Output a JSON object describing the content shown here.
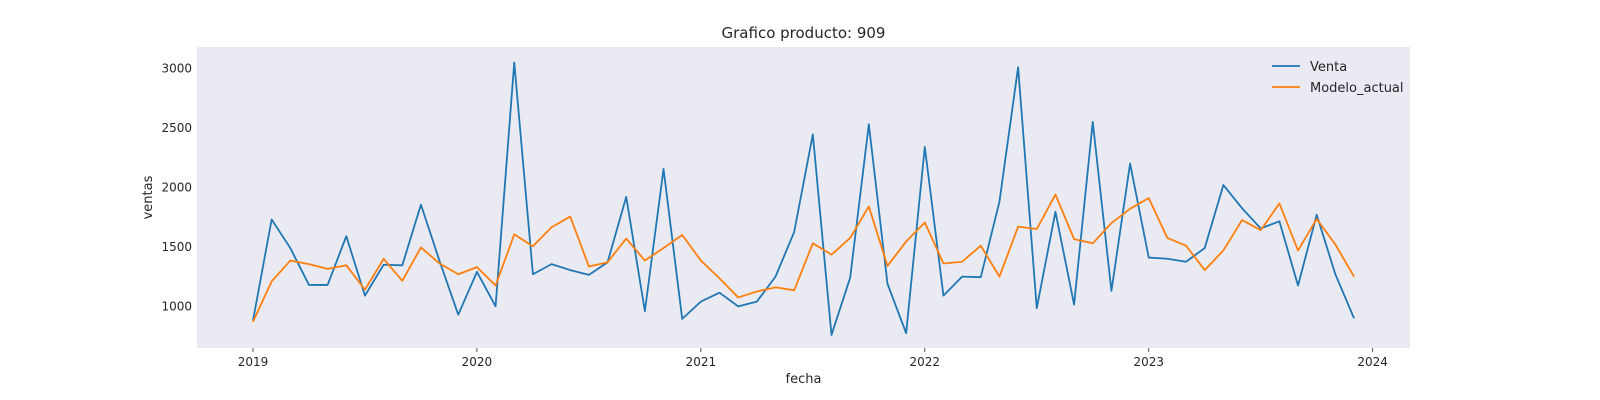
{
  "chart_data": {
    "type": "line",
    "title": "Grafico producto: 909",
    "xlabel": "fecha",
    "ylabel": "ventas",
    "x_start": "2019-01",
    "x_ticks": [
      "2019",
      "2020",
      "2021",
      "2022",
      "2023",
      "2024"
    ],
    "y_ticks": [
      1000,
      1500,
      2000,
      2500,
      3000
    ],
    "xlim": [
      "2018-10",
      "2024-03"
    ],
    "ylim": [
      650,
      3180
    ],
    "grid": false,
    "legend_position": "top-right",
    "background": "#eaeaf2",
    "series": [
      {
        "name": "Venta",
        "color": "#1f77b4",
        "values": [
          880,
          1730,
          1490,
          1180,
          1180,
          1590,
          1090,
          1350,
          1345,
          1855,
          1380,
          930,
          1290,
          1000,
          3050,
          1270,
          1355,
          1305,
          1265,
          1370,
          1920,
          960,
          2155,
          895,
          1040,
          1115,
          1000,
          1040,
          1250,
          1625,
          2445,
          760,
          1240,
          2530,
          1190,
          775,
          2340,
          1090,
          1250,
          1245,
          1880,
          3010,
          985,
          1795,
          1015,
          2550,
          1130,
          2200,
          1410,
          1400,
          1375,
          1490,
          2020,
          1825,
          1655,
          1715,
          1175,
          1770,
          1270,
          900
        ]
      },
      {
        "name": "Modelo_actual",
        "color": "#ff7f0e",
        "values": [
          870,
          1210,
          1385,
          1355,
          1315,
          1345,
          1140,
          1400,
          1215,
          1495,
          1360,
          1270,
          1330,
          1175,
          1605,
          1505,
          1665,
          1755,
          1335,
          1370,
          1570,
          1385,
          1490,
          1600,
          1385,
          1235,
          1075,
          1125,
          1160,
          1135,
          1530,
          1435,
          1575,
          1840,
          1340,
          1545,
          1705,
          1360,
          1375,
          1510,
          1250,
          1670,
          1650,
          1940,
          1565,
          1530,
          1700,
          1820,
          1910,
          1575,
          1510,
          1305,
          1470,
          1725,
          1640,
          1865,
          1470,
          1735,
          1520,
          1250
        ]
      }
    ]
  }
}
